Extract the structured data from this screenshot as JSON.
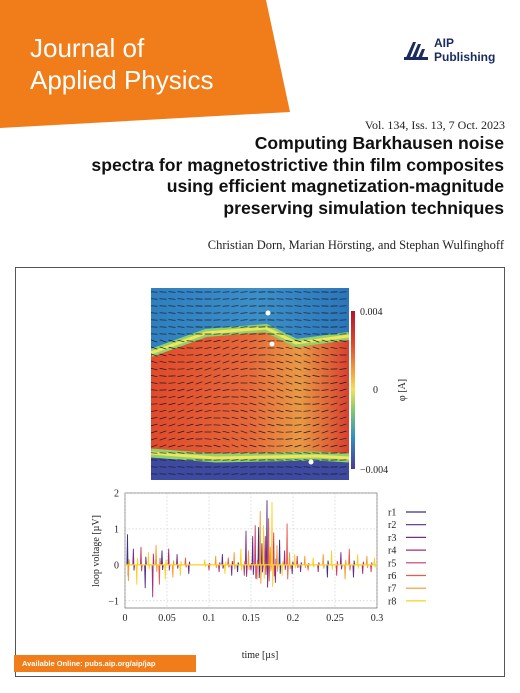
{
  "journal": {
    "line1": "Journal of",
    "line2": "Applied Physics"
  },
  "publisher": {
    "line1": "AIP",
    "line2": "Publishing"
  },
  "issue": "Vol. 134, Iss. 13, 7 Oct. 2023",
  "article": {
    "title_lines": [
      "Computing Barkhausen noise",
      "spectra for magnetostrictive thin film composites",
      "using efficient magnetization-magnitude",
      "preserving simulation techniques"
    ],
    "authors": "Christian Dorn, Marian Hörsting, and Stephan Wulfinghoff"
  },
  "colorbar": {
    "max_label": "0.004",
    "mid_label": "0",
    "min_label": "−0.004",
    "axis_label": "φ [A]"
  },
  "chart_data": {
    "type": "line",
    "xlabel": "time [µs]",
    "ylabel": "loop voltage [µV]",
    "xlim": [
      0,
      0.3
    ],
    "ylim": [
      -1.2,
      2.0
    ],
    "x_ticks": [
      "0",
      "0.05",
      "0.1",
      "0.15",
      "0.2",
      "0.25",
      "0.3"
    ],
    "y_ticks": [
      "−1",
      "0",
      "1",
      "2"
    ],
    "grid": true,
    "legend_position": "right",
    "series": [
      {
        "name": "r1",
        "color": "#3d2f86"
      },
      {
        "name": "r2",
        "color": "#5c2a8c"
      },
      {
        "name": "r3",
        "color": "#7e2a8a"
      },
      {
        "name": "r4",
        "color": "#a52c7c"
      },
      {
        "name": "r5",
        "color": "#cc3a66"
      },
      {
        "name": "r6",
        "color": "#e8594a"
      },
      {
        "name": "r7",
        "color": "#f59a2d"
      },
      {
        "name": "r8",
        "color": "#f9d21e"
      }
    ],
    "spikes": [
      {
        "x": 0.003,
        "y": 0.85,
        "s": 0
      },
      {
        "x": 0.004,
        "y": -0.45,
        "s": 6
      },
      {
        "x": 0.01,
        "y": 0.45,
        "s": 2
      },
      {
        "x": 0.014,
        "y": -0.55,
        "s": 7
      },
      {
        "x": 0.019,
        "y": 0.5,
        "s": 4
      },
      {
        "x": 0.024,
        "y": -0.65,
        "s": 1
      },
      {
        "x": 0.028,
        "y": 0.35,
        "s": 7
      },
      {
        "x": 0.033,
        "y": -0.9,
        "s": 3
      },
      {
        "x": 0.037,
        "y": 0.55,
        "s": 6
      },
      {
        "x": 0.041,
        "y": -0.55,
        "s": 5
      },
      {
        "x": 0.044,
        "y": 0.4,
        "s": 0
      },
      {
        "x": 0.048,
        "y": -0.4,
        "s": 7
      },
      {
        "x": 0.052,
        "y": 0.45,
        "s": 3
      },
      {
        "x": 0.057,
        "y": -0.35,
        "s": 6
      },
      {
        "x": 0.062,
        "y": 0.3,
        "s": 2
      },
      {
        "x": 0.066,
        "y": -0.3,
        "s": 7
      },
      {
        "x": 0.072,
        "y": 0.2,
        "s": 5
      },
      {
        "x": 0.076,
        "y": -0.25,
        "s": 1
      },
      {
        "x": 0.095,
        "y": 0.15,
        "s": 7
      },
      {
        "x": 0.1,
        "y": -0.15,
        "s": 4
      },
      {
        "x": 0.108,
        "y": 0.25,
        "s": 6
      },
      {
        "x": 0.112,
        "y": -0.2,
        "s": 3
      },
      {
        "x": 0.116,
        "y": 0.3,
        "s": 1
      },
      {
        "x": 0.119,
        "y": -0.25,
        "s": 7
      },
      {
        "x": 0.123,
        "y": 0.2,
        "s": 5
      },
      {
        "x": 0.127,
        "y": -0.3,
        "s": 2
      },
      {
        "x": 0.13,
        "y": 0.35,
        "s": 6
      },
      {
        "x": 0.134,
        "y": -0.2,
        "s": 0
      },
      {
        "x": 0.138,
        "y": 0.45,
        "s": 7
      },
      {
        "x": 0.142,
        "y": -0.3,
        "s": 4
      },
      {
        "x": 0.144,
        "y": 0.95,
        "s": 2
      },
      {
        "x": 0.147,
        "y": 0.4,
        "s": 6
      },
      {
        "x": 0.15,
        "y": -0.15,
        "s": 3
      },
      {
        "x": 0.152,
        "y": 0.8,
        "s": 1
      },
      {
        "x": 0.155,
        "y": 1.1,
        "s": 4
      },
      {
        "x": 0.157,
        "y": -0.4,
        "s": 5
      },
      {
        "x": 0.159,
        "y": 1.05,
        "s": 0
      },
      {
        "x": 0.161,
        "y": 1.5,
        "s": 6
      },
      {
        "x": 0.163,
        "y": 0.6,
        "s": 2
      },
      {
        "x": 0.165,
        "y": 1.1,
        "s": 7
      },
      {
        "x": 0.167,
        "y": 0.8,
        "s": 3
      },
      {
        "x": 0.169,
        "y": 1.8,
        "s": 1
      },
      {
        "x": 0.171,
        "y": 1.3,
        "s": 5
      },
      {
        "x": 0.173,
        "y": 0.5,
        "s": 6
      },
      {
        "x": 0.175,
        "y": 1.75,
        "s": 7
      },
      {
        "x": 0.177,
        "y": 0.9,
        "s": 4
      },
      {
        "x": 0.179,
        "y": -0.5,
        "s": 2
      },
      {
        "x": 0.181,
        "y": 0.55,
        "s": 6
      },
      {
        "x": 0.184,
        "y": 0.7,
        "s": 0
      },
      {
        "x": 0.187,
        "y": -0.3,
        "s": 7
      },
      {
        "x": 0.19,
        "y": 0.4,
        "s": 3
      },
      {
        "x": 0.193,
        "y": 1.15,
        "s": 5
      },
      {
        "x": 0.196,
        "y": 0.35,
        "s": 6
      },
      {
        "x": 0.199,
        "y": -0.25,
        "s": 1
      },
      {
        "x": 0.202,
        "y": 0.3,
        "s": 7
      },
      {
        "x": 0.205,
        "y": 0.25,
        "s": 4
      },
      {
        "x": 0.209,
        "y": -0.2,
        "s": 2
      },
      {
        "x": 0.214,
        "y": 0.25,
        "s": 6
      },
      {
        "x": 0.218,
        "y": -0.15,
        "s": 5
      },
      {
        "x": 0.224,
        "y": 0.2,
        "s": 7
      },
      {
        "x": 0.23,
        "y": -0.2,
        "s": 3
      },
      {
        "x": 0.236,
        "y": 0.3,
        "s": 6
      },
      {
        "x": 0.241,
        "y": -0.35,
        "s": 0
      },
      {
        "x": 0.246,
        "y": 0.4,
        "s": 7
      },
      {
        "x": 0.252,
        "y": -0.3,
        "s": 4
      },
      {
        "x": 0.257,
        "y": 0.35,
        "s": 2
      },
      {
        "x": 0.262,
        "y": -0.4,
        "s": 6
      },
      {
        "x": 0.267,
        "y": 0.45,
        "s": 5
      },
      {
        "x": 0.272,
        "y": -0.35,
        "s": 1
      },
      {
        "x": 0.277,
        "y": 0.3,
        "s": 7
      },
      {
        "x": 0.283,
        "y": -0.25,
        "s": 3
      },
      {
        "x": 0.288,
        "y": 0.25,
        "s": 6
      },
      {
        "x": 0.293,
        "y": -0.2,
        "s": 4
      },
      {
        "x": 0.297,
        "y": 0.2,
        "s": 7
      }
    ]
  },
  "footer": {
    "available": "Available Online: pubs.aip.org/aip/jap"
  }
}
